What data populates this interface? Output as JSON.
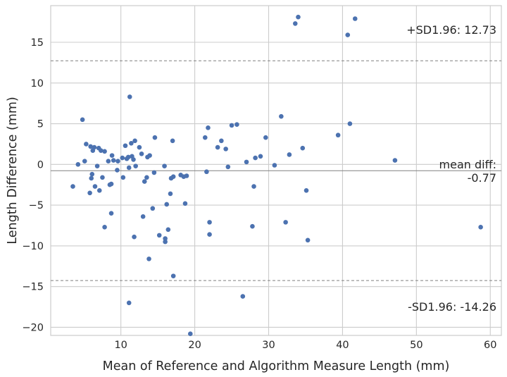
{
  "chart_data": {
    "type": "scatter",
    "title": "",
    "xlabel": "Mean of Reference and Algorithm Measure Length (mm)",
    "ylabel": "Length Difference (mm)",
    "xlim": [
      0.5,
      61.5
    ],
    "ylim": [
      -21,
      19.5
    ],
    "xticks": [
      10,
      20,
      30,
      40,
      50,
      60
    ],
    "yticks": [
      -20,
      -15,
      -10,
      -5,
      0,
      5,
      10,
      15
    ],
    "xtick_labels": [
      "10",
      "20",
      "30",
      "40",
      "50",
      "60"
    ],
    "ytick_labels": [
      "−20",
      "−15",
      "−10",
      "−5",
      "0",
      "5",
      "10",
      "15"
    ],
    "grid": true,
    "point_color": "#4c72b0",
    "reference_lines": [
      {
        "name": "upper",
        "y": 12.73,
        "style": "dashed",
        "color": "#808080"
      },
      {
        "name": "mean",
        "y": -0.77,
        "style": "solid",
        "color": "#808080"
      },
      {
        "name": "lower",
        "y": -14.26,
        "style": "dashed",
        "color": "#808080"
      }
    ],
    "annotations": {
      "upper": "+SD1.96: 12.73",
      "mean_line1": "mean diff:",
      "mean_line2": "-0.77",
      "lower": "-SD1.96: -14.26"
    },
    "points": [
      [
        3.5,
        -2.7
      ],
      [
        4.2,
        0.0
      ],
      [
        4.8,
        5.5
      ],
      [
        5.1,
        0.4
      ],
      [
        5.3,
        2.5
      ],
      [
        5.8,
        -3.5
      ],
      [
        5.9,
        2.2
      ],
      [
        6.0,
        -1.7
      ],
      [
        6.1,
        -1.2
      ],
      [
        6.2,
        1.7
      ],
      [
        6.4,
        2.1
      ],
      [
        6.5,
        -2.7
      ],
      [
        6.8,
        -0.2
      ],
      [
        7.0,
        2.0
      ],
      [
        7.1,
        -3.2
      ],
      [
        7.3,
        1.7
      ],
      [
        7.5,
        -1.6
      ],
      [
        7.8,
        1.6
      ],
      [
        7.8,
        -7.7
      ],
      [
        8.3,
        0.4
      ],
      [
        8.5,
        -2.5
      ],
      [
        8.7,
        -2.4
      ],
      [
        8.7,
        -6.0
      ],
      [
        8.8,
        1.1
      ],
      [
        9.0,
        0.5
      ],
      [
        9.5,
        -0.7
      ],
      [
        9.6,
        0.4
      ],
      [
        10.2,
        0.8
      ],
      [
        10.3,
        -1.6
      ],
      [
        10.6,
        2.3
      ],
      [
        10.8,
        0.7
      ],
      [
        11.0,
        0.9
      ],
      [
        11.1,
        -0.4
      ],
      [
        11.1,
        -17.0
      ],
      [
        11.2,
        8.3
      ],
      [
        11.4,
        2.6
      ],
      [
        11.5,
        1.0
      ],
      [
        11.7,
        0.6
      ],
      [
        11.8,
        -8.9
      ],
      [
        11.9,
        2.9
      ],
      [
        12.0,
        -0.2
      ],
      [
        12.5,
        2.1
      ],
      [
        12.8,
        1.3
      ],
      [
        13.0,
        -6.4
      ],
      [
        13.2,
        -2.1
      ],
      [
        13.5,
        -1.6
      ],
      [
        13.6,
        0.9
      ],
      [
        13.8,
        -11.6
      ],
      [
        13.9,
        1.1
      ],
      [
        14.3,
        -5.4
      ],
      [
        14.5,
        -1.0
      ],
      [
        14.6,
        3.3
      ],
      [
        15.2,
        -8.7
      ],
      [
        15.9,
        -0.2
      ],
      [
        16.0,
        -9.1
      ],
      [
        16.0,
        -9.5
      ],
      [
        16.2,
        -4.9
      ],
      [
        16.4,
        -8.0
      ],
      [
        16.7,
        -3.6
      ],
      [
        16.8,
        -1.7
      ],
      [
        17.0,
        2.9
      ],
      [
        17.1,
        -13.7
      ],
      [
        17.1,
        -1.5
      ],
      [
        18.1,
        -1.3
      ],
      [
        18.5,
        -1.5
      ],
      [
        18.7,
        -4.8
      ],
      [
        18.9,
        -1.4
      ],
      [
        19.4,
        -20.8
      ],
      [
        21.4,
        3.3
      ],
      [
        21.6,
        -0.9
      ],
      [
        21.8,
        4.5
      ],
      [
        22.0,
        -7.1
      ],
      [
        22.0,
        -8.6
      ],
      [
        23.1,
        2.1
      ],
      [
        23.6,
        2.9
      ],
      [
        24.2,
        1.9
      ],
      [
        24.5,
        -0.3
      ],
      [
        25.0,
        4.8
      ],
      [
        25.7,
        4.9
      ],
      [
        26.5,
        -16.2
      ],
      [
        27.0,
        0.3
      ],
      [
        27.8,
        -7.6
      ],
      [
        28.0,
        -2.7
      ],
      [
        28.2,
        0.8
      ],
      [
        28.9,
        1.0
      ],
      [
        29.6,
        3.3
      ],
      [
        30.8,
        -0.1
      ],
      [
        31.7,
        5.9
      ],
      [
        32.3,
        -7.1
      ],
      [
        32.8,
        1.2
      ],
      [
        33.6,
        17.3
      ],
      [
        34.0,
        18.1
      ],
      [
        34.6,
        2.0
      ],
      [
        35.1,
        -3.2
      ],
      [
        35.3,
        -9.3
      ],
      [
        39.4,
        3.6
      ],
      [
        40.7,
        15.9
      ],
      [
        41.0,
        5.0
      ],
      [
        41.7,
        17.9
      ],
      [
        47.1,
        0.5
      ],
      [
        58.7,
        -7.7
      ]
    ]
  }
}
